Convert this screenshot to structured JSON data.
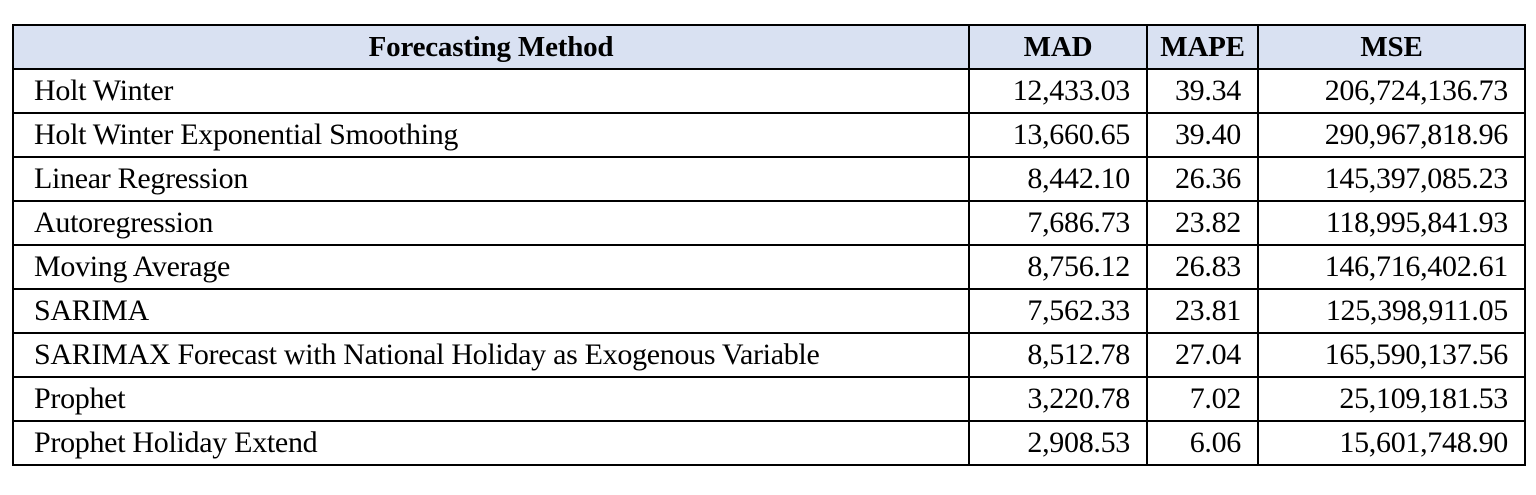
{
  "table": {
    "headers": [
      "Forecasting Method",
      "MAD",
      "MAPE",
      "MSE"
    ],
    "rows": [
      [
        "Holt Winter",
        "12,433.03",
        "39.34",
        "206,724,136.73"
      ],
      [
        "Holt Winter Exponential Smoothing",
        "13,660.65",
        "39.40",
        "290,967,818.96"
      ],
      [
        "Linear Regression",
        "8,442.10",
        "26.36",
        "145,397,085.23"
      ],
      [
        "Autoregression",
        "7,686.73",
        "23.82",
        "118,995,841.93"
      ],
      [
        "Moving Average",
        "8,756.12",
        "26.83",
        "146,716,402.61"
      ],
      [
        "SARIMA",
        "7,562.33",
        "23.81",
        "125,398,911.05"
      ],
      [
        "SARIMAX Forecast with National Holiday as Exogenous Variable",
        "8,512.78",
        "27.04",
        "165,590,137.56"
      ],
      [
        "Prophet",
        "3,220.78",
        "7.02",
        "25,109,181.53"
      ],
      [
        "Prophet Holiday Extend",
        "2,908.53",
        "6.06",
        "15,601,748.90"
      ]
    ]
  },
  "colors": {
    "header_background": "#d9e1f2",
    "border": "#000000",
    "text": "#000000"
  }
}
